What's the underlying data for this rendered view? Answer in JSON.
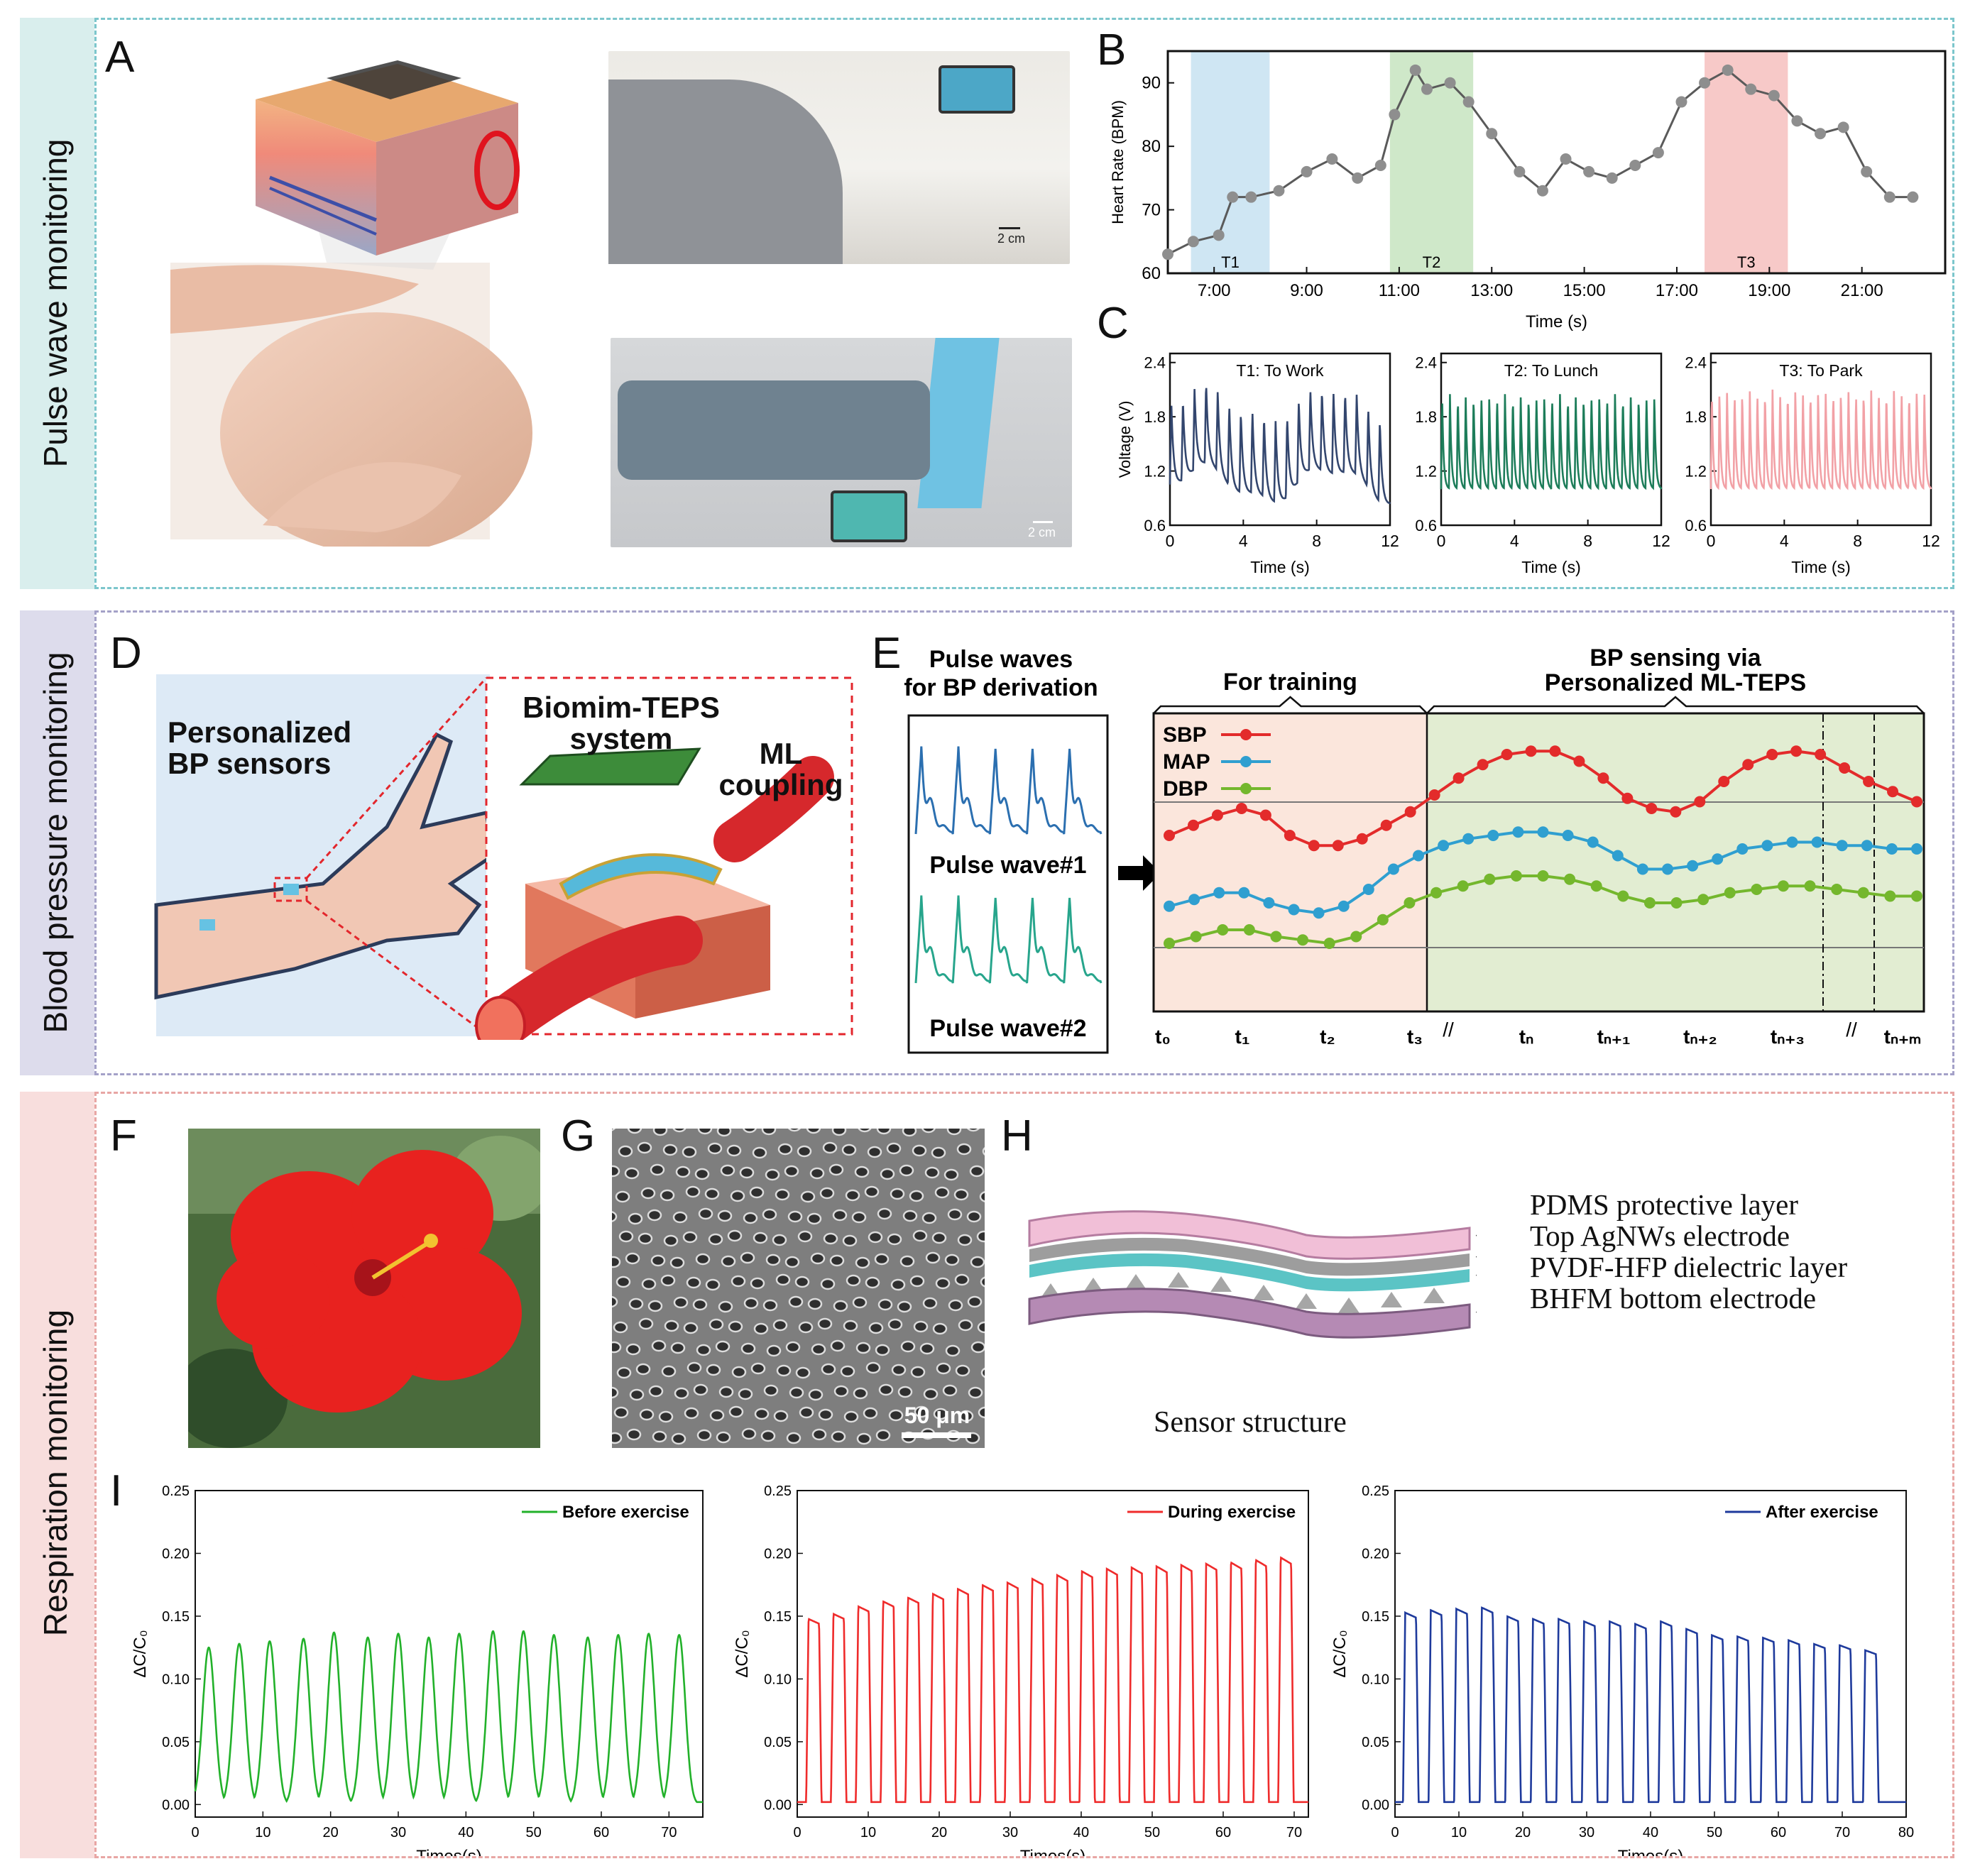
{
  "colors": {
    "teal_band": "#d9eeed",
    "purple_band": "#dddcec",
    "pink_band": "#f8dedd",
    "teal_border": "#7cc6cc",
    "purple_border": "#a4a1c8",
    "pink_border": "#e8a6a4",
    "t1_fill": "#cfe6f3",
    "t2_fill": "#cfe8c9",
    "t3_fill": "#f7c9c8",
    "sbp": "#e32b2b",
    "map": "#2f9fd0",
    "dbp": "#74b72d",
    "c_t1": "#33466e",
    "c_t2": "#1d7d5a",
    "c_t3": "#f2a1a6",
    "i_before": "#22b12a",
    "i_during": "#ef2b2b",
    "i_after": "#1e3a9c"
  },
  "sections": {
    "pulse": "Pulse wave monitoring",
    "bp": "Blood pressure monitoring",
    "resp": "Respiration monitoring"
  },
  "labels": {
    "A": "A",
    "B": "B",
    "C": "C",
    "D": "D",
    "E": "E",
    "F": "F",
    "G": "G",
    "H": "H",
    "I": "I"
  },
  "panelA": {
    "scale1": "2 cm",
    "scale2": "2 cm"
  },
  "panelD": {
    "personalized_line1": "Personalized",
    "personalized_line2": "BP sensors",
    "teps_line1": "Biomim-TEPS",
    "teps_line2": "system",
    "ml_line1": "ML",
    "ml_line2": "coupling"
  },
  "panelE": {
    "pulse_title_line1": "Pulse waves",
    "pulse_title_line2": "for BP derivation",
    "pulse1": "Pulse wave#1",
    "pulse2": "Pulse wave#2",
    "for_training": "For training",
    "bp_sensing_line1": "BP sensing via",
    "bp_sensing_line2": "Personalized ML-TEPS",
    "legend": [
      "SBP",
      "MAP",
      "DBP"
    ],
    "x_labels": [
      "t₀",
      "t₁",
      "t₂",
      "t₃",
      "tₙ",
      "tₙ₊₁",
      "tₙ₊₂",
      "tₙ₊₃",
      "tₙ₊ₘ"
    ],
    "break_mark": "//"
  },
  "panelG": {
    "scale": "50 μm"
  },
  "panelH": {
    "layers": [
      "PDMS protective layer",
      "Top AgNWs electrode",
      "PVDF-HFP dielectric layer",
      "BHFM bottom electrode"
    ],
    "caption": "Sensor structure"
  },
  "chart_data": [
    {
      "id": "B",
      "type": "line",
      "title": "",
      "xlabel": "Time (s)",
      "ylabel": "Heart Rate (BPM)",
      "xlim": [
        6.0,
        22.8
      ],
      "ylim": [
        60,
        95
      ],
      "x_tick_labels": [
        "7:00",
        "9:00",
        "11:00",
        "13:00",
        "15:00",
        "17:00",
        "19:00",
        "21:00"
      ],
      "x_tick_values": [
        7,
        9,
        11,
        13,
        15,
        17,
        19,
        21
      ],
      "y_ticks": [
        60,
        70,
        80,
        90
      ],
      "regions": [
        {
          "label": "T1",
          "from": 6.5,
          "to": 8.2
        },
        {
          "label": "T2",
          "from": 10.8,
          "to": 12.6
        },
        {
          "label": "T3",
          "from": 17.6,
          "to": 19.4
        }
      ],
      "x": [
        6.0,
        6.55,
        7.1,
        7.4,
        7.8,
        8.4,
        9.0,
        9.55,
        10.1,
        10.6,
        10.9,
        11.35,
        11.6,
        12.1,
        12.5,
        13.0,
        13.6,
        14.1,
        14.6,
        15.1,
        15.6,
        16.1,
        16.6,
        17.1,
        17.6,
        18.1,
        18.6,
        19.1,
        19.6,
        20.1,
        20.6,
        21.1,
        21.6,
        22.1
      ],
      "values": [
        63,
        65,
        66,
        72,
        72,
        73,
        76,
        78,
        75,
        77,
        85,
        92,
        89,
        90,
        87,
        82,
        76,
        73,
        78,
        76,
        75,
        77,
        79,
        87,
        90,
        92,
        89,
        88,
        84,
        82,
        83,
        76,
        72,
        72
      ]
    },
    {
      "id": "C1",
      "type": "line",
      "title": "T1: To Work",
      "xlabel": "Time (s)",
      "ylabel": "Voltage (V)",
      "xlim": [
        0,
        12
      ],
      "ylim": [
        0.6,
        2.5
      ],
      "x_ticks": [
        0,
        4,
        8,
        12
      ],
      "y_tick_labels": [
        "0.6",
        "1.2",
        "1.8",
        "2.4"
      ],
      "peaks": 19,
      "low": 1.05,
      "high": 1.95
    },
    {
      "id": "C2",
      "type": "line",
      "title": "T2: To Lunch",
      "xlabel": "Time (s)",
      "ylabel": "",
      "xlim": [
        0,
        12
      ],
      "ylim": [
        0.6,
        2.5
      ],
      "x_ticks": [
        0,
        4,
        8,
        12
      ],
      "y_tick_labels": [
        "0.6",
        "1.2",
        "1.8",
        "2.4"
      ],
      "peaks": 28,
      "low": 1.0,
      "high": 2.05
    },
    {
      "id": "C3",
      "type": "line",
      "title": "T3: To Park",
      "xlabel": "Time (s)",
      "ylabel": "",
      "xlim": [
        0,
        12
      ],
      "ylim": [
        0.6,
        2.5
      ],
      "x_ticks": [
        0,
        4,
        8,
        12
      ],
      "y_tick_labels": [
        "0.6",
        "1.2",
        "1.8",
        "2.4"
      ],
      "peaks": 29,
      "low": 1.0,
      "high": 2.1
    },
    {
      "id": "E",
      "type": "line",
      "x_labels": [
        "t₀",
        "t₁",
        "t₂",
        "t₃",
        "tₙ",
        "tₙ₊₁",
        "tₙ₊₂",
        "tₙ₊₃",
        "tₙ₊ₘ"
      ],
      "series": [
        {
          "name": "SBP",
          "values": [
            118,
            121,
            124,
            126,
            124,
            118,
            115,
            115,
            117,
            121,
            125,
            130,
            135,
            139,
            142,
            143,
            143,
            140,
            135,
            129,
            126,
            125,
            128,
            134,
            139,
            142,
            143,
            142,
            138,
            134,
            131,
            128
          ]
        },
        {
          "name": "MAP",
          "values": [
            97,
            99,
            101,
            101,
            98,
            96,
            95,
            97,
            102,
            108,
            112,
            115,
            117,
            118,
            119,
            119,
            118,
            116,
            112,
            108,
            108,
            109,
            111,
            114,
            115,
            116,
            116,
            115,
            115,
            114,
            114
          ]
        },
        {
          "name": "DBP",
          "values": [
            86,
            88,
            90,
            90,
            88,
            87,
            86,
            88,
            93,
            98,
            101,
            103,
            105,
            106,
            106,
            105,
            103,
            100,
            98,
            98,
            99,
            101,
            102,
            103,
            103,
            102,
            101,
            100,
            100
          ]
        }
      ]
    },
    {
      "id": "I1",
      "type": "line",
      "legend": "Before exercise",
      "xlabel": "Times(s)",
      "ylabel": "ΔC/C₀",
      "xlim": [
        0,
        75
      ],
      "ylim": [
        -0.01,
        0.25
      ],
      "x_ticks": [
        0,
        10,
        20,
        30,
        40,
        50,
        60,
        70
      ],
      "y_tick_labels": [
        "0.00",
        "0.05",
        "0.10",
        "0.15",
        "0.20",
        "0.25"
      ],
      "y_ticks": [
        0,
        0.05,
        0.1,
        0.15,
        0.2,
        0.25
      ],
      "peak_times": [
        2,
        6.5,
        11,
        16,
        20.5,
        25.5,
        30,
        34.5,
        39,
        44,
        48.5,
        53,
        58,
        62.5,
        67,
        71.5
      ],
      "peak_heights": [
        0.125,
        0.128,
        0.13,
        0.132,
        0.137,
        0.133,
        0.136,
        0.133,
        0.136,
        0.138,
        0.138,
        0.135,
        0.133,
        0.135,
        0.136,
        0.135
      ]
    },
    {
      "id": "I2",
      "type": "line",
      "legend": "During exercise",
      "xlabel": "Times(s)",
      "ylabel": "ΔC/C₀",
      "xlim": [
        0,
        72
      ],
      "ylim": [
        -0.01,
        0.25
      ],
      "x_ticks": [
        0,
        10,
        20,
        30,
        40,
        50,
        60,
        70
      ],
      "y_tick_labels": [
        "0.00",
        "0.05",
        "0.10",
        "0.15",
        "0.20",
        "0.25"
      ],
      "y_ticks": [
        0,
        0.05,
        0.1,
        0.15,
        0.2,
        0.25
      ],
      "peak_times": [
        1.5,
        5,
        8.5,
        12,
        15.5,
        19,
        22.5,
        26,
        29.5,
        33,
        36.5,
        40,
        43.5,
        47,
        50.5,
        54,
        57.5,
        61,
        64.5,
        68
      ],
      "peak_heights": [
        0.148,
        0.152,
        0.158,
        0.162,
        0.165,
        0.168,
        0.172,
        0.175,
        0.177,
        0.18,
        0.183,
        0.186,
        0.188,
        0.189,
        0.19,
        0.191,
        0.192,
        0.193,
        0.195,
        0.197
      ]
    },
    {
      "id": "I3",
      "type": "line",
      "legend": "After exercise",
      "xlabel": "Times(s)",
      "ylabel": "ΔC/C₀",
      "xlim": [
        0,
        80
      ],
      "ylim": [
        -0.01,
        0.25
      ],
      "x_ticks": [
        0,
        10,
        20,
        30,
        40,
        50,
        60,
        70,
        80
      ],
      "y_tick_labels": [
        "0.00",
        "0.05",
        "0.10",
        "0.15",
        "0.20",
        "0.25"
      ],
      "y_ticks": [
        0,
        0.05,
        0.1,
        0.15,
        0.2,
        0.25
      ],
      "peak_times": [
        1.5,
        5.5,
        9.5,
        13.5,
        17.5,
        21.5,
        25.5,
        29.5,
        33.5,
        37.5,
        41.5,
        45.5,
        49.5,
        53.5,
        57.5,
        61.5,
        65.5,
        69.5,
        73.5
      ],
      "peak_heights": [
        0.153,
        0.155,
        0.156,
        0.157,
        0.15,
        0.148,
        0.148,
        0.146,
        0.146,
        0.144,
        0.146,
        0.14,
        0.135,
        0.134,
        0.133,
        0.131,
        0.128,
        0.127,
        0.123
      ]
    }
  ]
}
